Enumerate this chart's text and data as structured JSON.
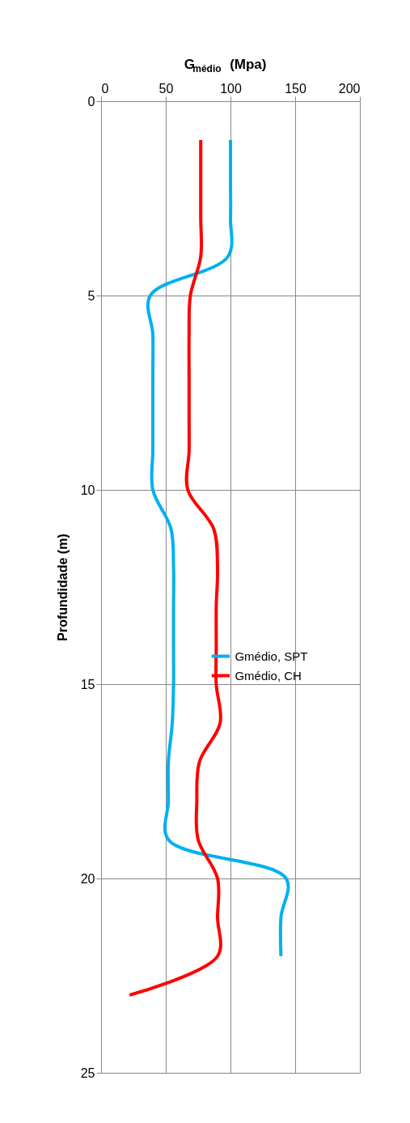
{
  "chart_data": {
    "type": "line",
    "xlabel": "G$_{médio}$ (Mpa)",
    "ylabel": "Profundidade (m)",
    "xlim": [
      0,
      200
    ],
    "xticks": [
      0,
      50,
      100,
      150,
      200
    ],
    "ylim": [
      25,
      0
    ],
    "yticks": [
      0,
      5,
      10,
      15,
      20,
      25
    ],
    "grid": true,
    "legend": "right",
    "line_style": "solid",
    "marker": "none",
    "series": [
      {
        "name": "Gmédio, SPT",
        "color": "#00b0f0",
        "x": [
          100,
          100,
          100,
          98,
          38,
          40,
          40,
          40,
          40,
          40,
          54,
          56,
          56,
          56,
          56,
          55,
          52,
          52,
          52,
          143,
          139,
          139
        ],
        "values": [
          1,
          2,
          3,
          4,
          5,
          6,
          7,
          8,
          9,
          10,
          11,
          12,
          13,
          14,
          15,
          16,
          17,
          18,
          19,
          20,
          21,
          22
        ]
      },
      {
        "name": "Gmédio, CH",
        "color": "#ff0000",
        "x": [
          77,
          77,
          77,
          77,
          69,
          68,
          68,
          68,
          68,
          67,
          87,
          90,
          89,
          89,
          89,
          92,
          76,
          74,
          75,
          90,
          90,
          90,
          22
        ],
        "values": [
          1,
          2,
          3,
          4,
          5,
          6,
          7,
          8,
          9,
          10,
          11,
          12,
          13,
          14,
          15,
          16,
          17,
          18,
          19,
          20,
          21,
          22,
          23
        ]
      }
    ]
  }
}
